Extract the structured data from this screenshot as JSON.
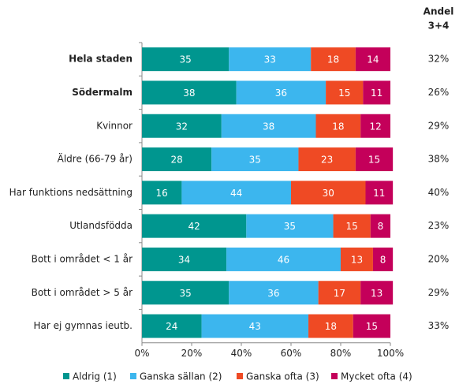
{
  "chart_data": {
    "type": "stacked-bar-horizontal",
    "categories": [
      "Hela staden",
      "Södermalm",
      "Kvinnor",
      "Äldre (66-79 år)",
      "Har funktions nedsättning",
      "Utlandsfödda",
      "Bott i området < 1 år",
      "Bott i området > 5 år",
      "Har ej gymnas ieutb."
    ],
    "emphasized": [
      true,
      true,
      false,
      false,
      false,
      false,
      false,
      false,
      false
    ],
    "series": [
      {
        "name": "Aldrig (1)",
        "color": "#00968f",
        "values": [
          35,
          38,
          32,
          28,
          16,
          42,
          34,
          35,
          24
        ]
      },
      {
        "name": "Ganska sällan (2)",
        "color": "#3cb6ee",
        "values": [
          33,
          36,
          38,
          35,
          44,
          35,
          46,
          36,
          43
        ]
      },
      {
        "name": "Ganska ofta (3)",
        "color": "#ef4a24",
        "values": [
          18,
          15,
          18,
          23,
          30,
          15,
          13,
          17,
          18
        ]
      },
      {
        "name": "Mycket ofta (4)",
        "color": "#c4005a",
        "values": [
          14,
          11,
          12,
          15,
          11,
          8,
          8,
          13,
          15
        ]
      }
    ],
    "xlim": [
      0,
      100
    ],
    "xticks": [
      {
        "value": 0,
        "label": "0%"
      },
      {
        "value": 20,
        "label": "20%"
      },
      {
        "value": 40,
        "label": "40%"
      },
      {
        "value": 60,
        "label": "60%"
      },
      {
        "value": 80,
        "label": "80%"
      },
      {
        "value": 100,
        "label": "100%"
      }
    ],
    "share_title": [
      "Andel",
      "3+4"
    ],
    "share": {
      "values": [
        32,
        26,
        29,
        38,
        40,
        23,
        20,
        29,
        33
      ],
      "value_labels": [
        "32%",
        "26%",
        "29%",
        "38%",
        "40%",
        "23%",
        "20%",
        "29%",
        "33%"
      ]
    },
    "legend": "bottom"
  }
}
